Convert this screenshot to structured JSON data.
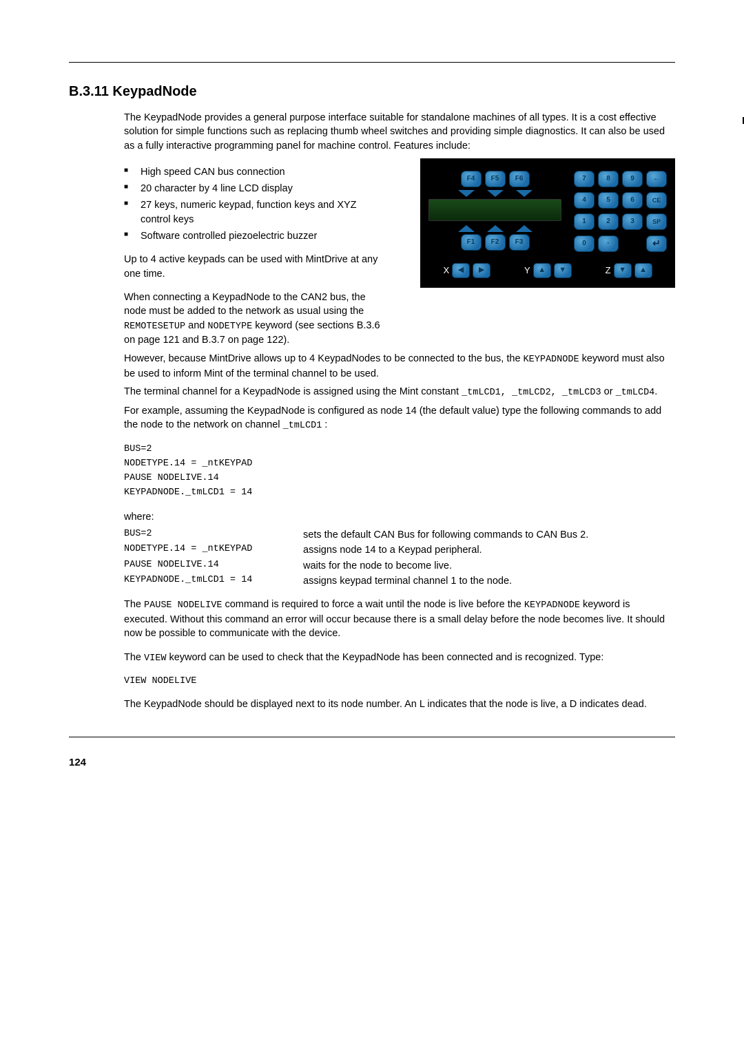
{
  "section_number": "B.3.11",
  "section_title": "KeypadNode",
  "intro": "The KeypadNode provides a general purpose interface suitable for standalone machines of all types.  It is a cost effective solution for simple functions such as replacing thumb wheel switches and providing simple diagnostics. It can also be used as a fully interactive programming panel for machine control. Features include:",
  "bullets": [
    "High speed CAN bus connection",
    "20 character by 4 line LCD display",
    "27 keys, numeric keypad, function keys and XYZ control keys",
    "Software controlled piezoelectric buzzer"
  ],
  "para_upto4": "Up to 4 active keypads can be used with MintDrive at any one time.",
  "para_connect1": "When connecting a KeypadNode to the CAN2 bus, the node must be added to the network as usual using the ",
  "kw_remotesetup": "REMOTESETUP",
  "and_word": " and ",
  "kw_nodetype": "NODETYPE",
  "para_connect2": " keyword (see sections B.3.6 on page 121 and B.3.7 on page 122).",
  "para_however1": "However, because MintDrive allows up to 4 KeypadNodes to be connected to the bus, the ",
  "kw_keypadnode": "KEYPADNODE",
  "para_however2": " keyword must also be used to inform Mint of the terminal channel to be used.",
  "para_terminal1": "The terminal channel for a KeypadNode is assigned using the Mint constant ",
  "kw_tmlcd12": "_tmLCD1, _tmLCD2, _tmLCD3",
  "or_word": " or ",
  "kw_tmlcd4": "_tmLCD4",
  "period": ".",
  "para_example1": "For example, assuming the KeypadNode is configured as node 14 (the default value) type the following commands to add the node to the network on channel ",
  "kw_tmlcd1b": "_tmLCD1",
  "colon": " :",
  "code": {
    "l1": "BUS=2",
    "l2": "NODETYPE.14 = _ntKEYPAD",
    "l3": "PAUSE NODELIVE.14",
    "l4": "KEYPADNODE._tmLCD1 = 14"
  },
  "where_label": "where:",
  "defns": [
    {
      "k": "BUS=2",
      "v": "sets the default CAN Bus for following commands to CAN Bus 2."
    },
    {
      "k": "NODETYPE.14 = _ntKEYPAD",
      "v": "assigns node 14 to a Keypad peripheral."
    },
    {
      "k": "PAUSE NODELIVE.14",
      "v": "waits for the node to become live."
    },
    {
      "k": "KEYPADNODE._tmLCD1 = 14",
      "v": "assigns keypad terminal channel 1 to the node."
    }
  ],
  "para_pause1": "The ",
  "kw_pausenl": "PAUSE NODELIVE",
  "para_pause2": " command is required to force a wait until the node is live before the ",
  "para_pause3": " keyword is executed.  Without this command an error will occur because there is a small delay before the node becomes live.  It should now be possible to communicate with the device.",
  "para_view1": "The ",
  "kw_view": "VIEW",
  "para_view2": " keyword can be used to check that the KeypadNode has been connected and is recognized. Type:",
  "kw_viewnl": "VIEW NODELIVE",
  "para_final": "The KeypadNode should be displayed next to its node number.  An L indicates that the node is live, a D indicates dead.",
  "page_number": "124",
  "keypad": {
    "f_top": [
      "F4",
      "F5",
      "F6"
    ],
    "f_bot": [
      "F1",
      "F2",
      "F3"
    ],
    "num_rows": [
      [
        "7",
        "8",
        "9",
        "←"
      ],
      [
        "4",
        "5",
        "6",
        "CE"
      ],
      [
        "1",
        "2",
        "3",
        "SP"
      ],
      [
        "0",
        "·",
        "",
        "↵"
      ]
    ],
    "xyz": [
      "X",
      "Y",
      "Z"
    ]
  }
}
